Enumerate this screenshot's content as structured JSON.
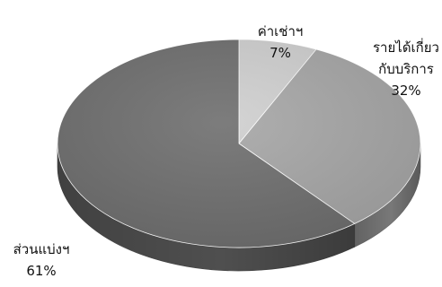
{
  "chart_data": {
    "type": "pie",
    "style": "3d",
    "legend": "none",
    "categories": [
      "ค่าเช่าฯ",
      "รายได้เกี่ยวกับบริการ",
      "ส่วนแบ่งฯ"
    ],
    "values": [
      7,
      32,
      61
    ],
    "colors": [
      "#cfcfcf",
      "#a6a6a6",
      "#6e6e6e"
    ],
    "labels": [
      {
        "lines": [
          "ค่าเช่าฯ"
        ],
        "pct": "7%"
      },
      {
        "lines": [
          "รายได้เกี่ยว",
          "กับบริการ"
        ],
        "pct": "32%"
      },
      {
        "lines": [
          "ส่วนแบ่งฯ"
        ],
        "pct": "61%"
      }
    ]
  }
}
